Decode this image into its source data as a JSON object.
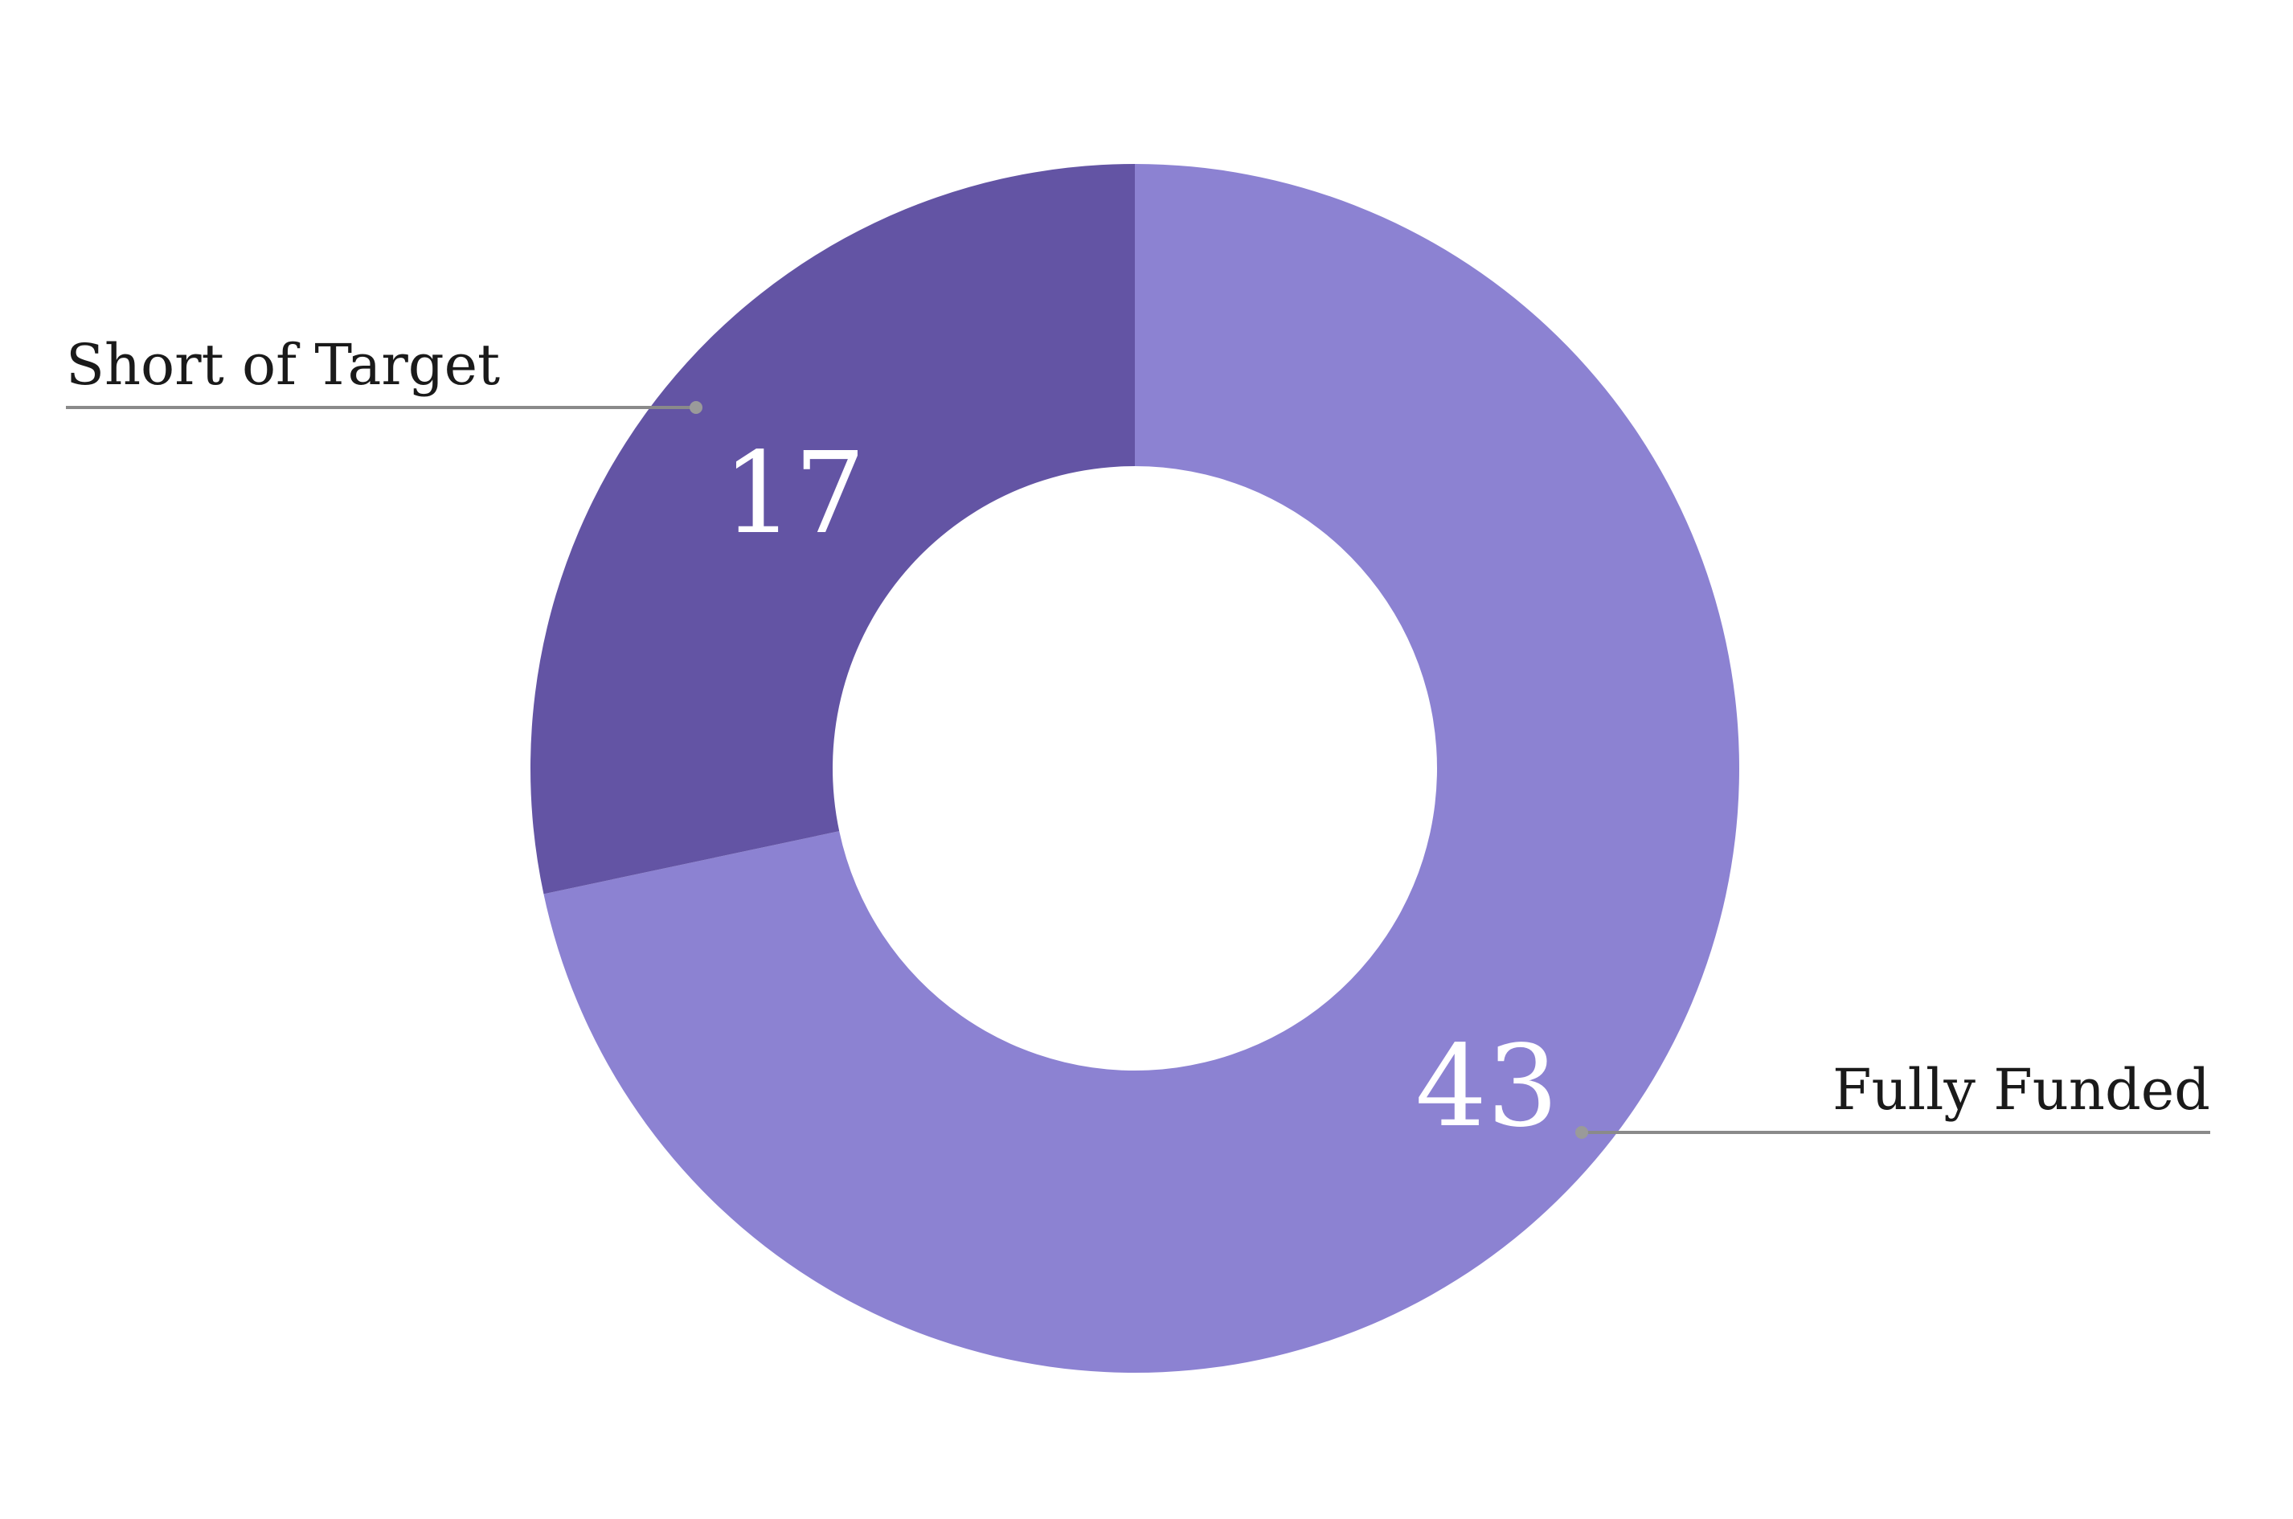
{
  "chart_data": {
    "type": "pie",
    "variant": "donut",
    "categories": [
      "Fully Funded",
      "Short of Target"
    ],
    "values": [
      43,
      17
    ],
    "colors": [
      "#8c82d2",
      "#6354a4"
    ],
    "value_labels": [
      "43",
      "17"
    ],
    "legend": "none",
    "start": "top, clockwise"
  }
}
